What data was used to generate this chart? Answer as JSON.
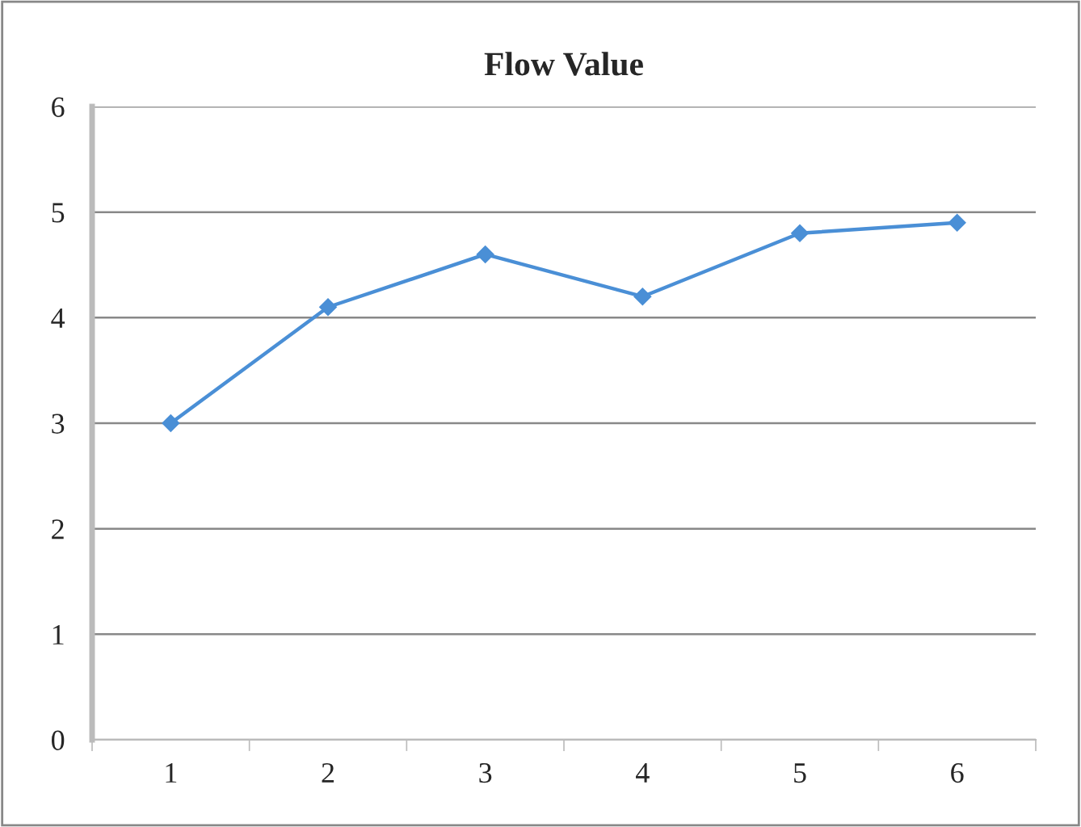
{
  "chart_data": {
    "type": "line",
    "title": "Flow Value",
    "categories": [
      "1",
      "2",
      "3",
      "4",
      "5",
      "6"
    ],
    "series": [
      {
        "color": "#4a8fd6",
        "values": [
          3.0,
          4.1,
          4.6,
          4.2,
          4.8,
          4.9
        ]
      }
    ],
    "ylim": [
      0,
      6
    ],
    "yticks": [
      0,
      1,
      2,
      3,
      4,
      5,
      6
    ],
    "grid": "y",
    "marker": "diamond",
    "line_style": "solid",
    "legend": false
  }
}
